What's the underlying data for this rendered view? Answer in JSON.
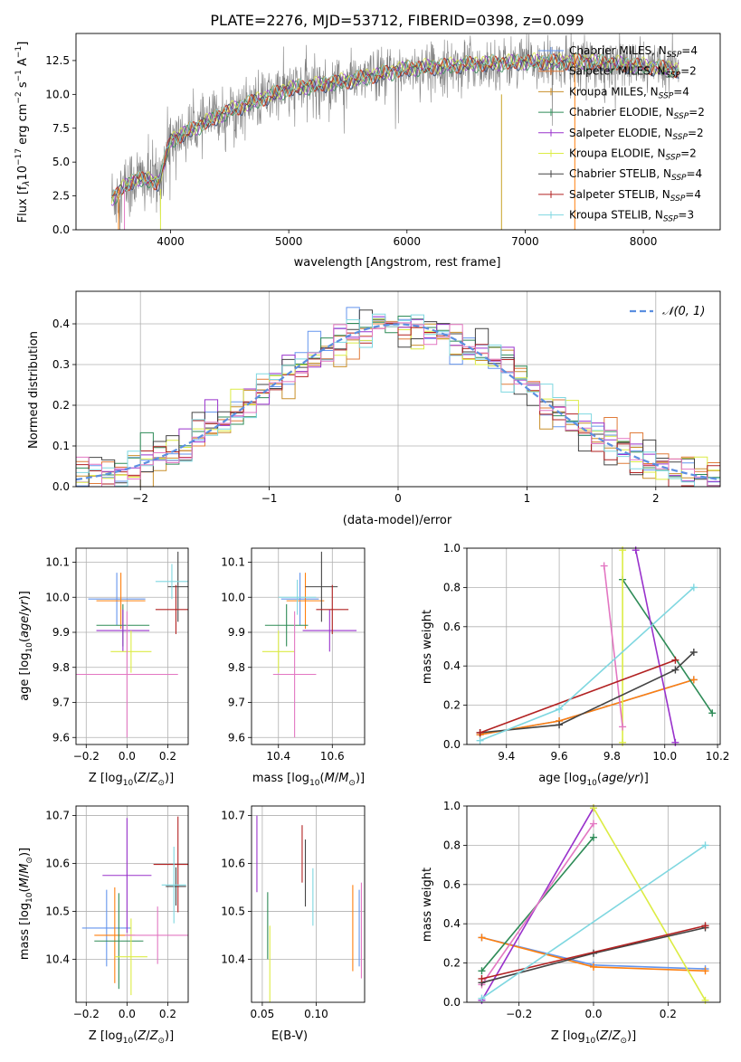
{
  "figure_title": "PLATE=2276, MJD=53712, FIBERID=0398, z=0.099",
  "colors": {
    "spectrum": "#808080",
    "chabrier_miles": "#6495ed",
    "salpeter_miles": "#1f77b4",
    "kroupa_miles": "#ff7f0e",
    "chabrier_elodie": "#2e8b57",
    "salpeter_elodie": "#9932cc",
    "kroupa_elodie": "#dcec44",
    "chabrier_stelib": "#444444",
    "salpeter_stelib": "#b22222",
    "kroupa_stelib": "#7fd7e0",
    "pink": "#e377c2",
    "normal_curve": "#5b8fe0"
  },
  "legend_models": [
    {
      "name": "Chabrier MILES",
      "nssp": "N",
      "sub": "SSP",
      "val": "=4",
      "color": "#6495ed"
    },
    {
      "name": "Salpeter MILES",
      "nssp": "N",
      "sub": "SSP",
      "val": "=2",
      "color": "#e07b39"
    },
    {
      "name": "Kroupa MILES",
      "nssp": "N",
      "sub": "SSP",
      "val": "=4",
      "color": "#c98f2a"
    },
    {
      "name": "Chabrier ELODIE",
      "nssp": "N",
      "sub": "SSP",
      "val": "=2",
      "color": "#2e8b57"
    },
    {
      "name": "Salpeter ELODIE",
      "nssp": "N",
      "sub": "SSP",
      "val": "=2",
      "color": "#9932cc"
    },
    {
      "name": "Kroupa ELODIE",
      "nssp": "N",
      "sub": "SSP",
      "val": "=2",
      "color": "#dcec44"
    },
    {
      "name": "Chabrier STELIB",
      "nssp": "N",
      "sub": "SSP",
      "val": "=4",
      "color": "#444444"
    },
    {
      "name": "Salpeter STELIB",
      "nssp": "N",
      "sub": "SSP",
      "val": "=4",
      "color": "#b22222"
    },
    {
      "name": "Kroupa STELIB",
      "nssp": "N",
      "sub": "SSP",
      "val": "=3",
      "color": "#7fd7e0"
    }
  ],
  "chart_data": [
    {
      "id": "spectrum",
      "type": "line",
      "xlabel": "wavelength [Angstrom, rest frame]",
      "ylabel": "Flux [f",
      "xlim": [
        3200,
        8650
      ],
      "ylim": [
        0,
        14.5
      ],
      "xticks": [
        4000,
        5000,
        6000,
        7000,
        8000
      ],
      "yticks": [
        0.0,
        2.5,
        5.0,
        7.5,
        10.0,
        12.5
      ],
      "x_range": [
        3500,
        8300
      ],
      "trend": [
        [
          3500,
          2.3
        ],
        [
          3700,
          3.8
        ],
        [
          3900,
          3.5
        ],
        [
          4000,
          6.6
        ],
        [
          4500,
          8.8
        ],
        [
          5000,
          10.4
        ],
        [
          5500,
          11.0
        ],
        [
          6000,
          11.9
        ],
        [
          6500,
          12.2
        ],
        [
          7000,
          12.4
        ],
        [
          7500,
          12.4
        ],
        [
          8000,
          12.1
        ],
        [
          8300,
          11.8
        ]
      ],
      "spike_wavelengths": [
        6800,
        7420
      ]
    },
    {
      "id": "residuals",
      "type": "line",
      "xlabel": "(data-model)/error",
      "ylabel": "Normed distribution",
      "xlim": [
        -2.5,
        2.5
      ],
      "ylim": [
        0,
        0.48
      ],
      "xticks": [
        -2,
        -1,
        0,
        1,
        2
      ],
      "yticks": [
        0.0,
        0.1,
        0.2,
        0.3,
        0.4
      ],
      "bin_width": 0.1,
      "legend": "𝒩(0, 1)"
    },
    {
      "id": "age_vs_Z",
      "type": "scatter",
      "xlabel": "Z [log",
      "ylabel": "age  [log",
      "xlim": [
        -0.25,
        0.3
      ],
      "ylim": [
        9.58,
        10.14
      ],
      "xticks": [
        -0.2,
        0.0,
        0.2
      ],
      "yticks": [
        9.6,
        9.7,
        9.8,
        9.9,
        10.0,
        10.1
      ],
      "points": [
        {
          "x": -0.05,
          "y": 9.995,
          "xerr": 0.14,
          "yerr": 0.075,
          "color": "#6495ed"
        },
        {
          "x": -0.03,
          "y": 9.99,
          "xerr": 0.12,
          "yerr": 0.08,
          "color": "#ff7f0e"
        },
        {
          "x": -0.02,
          "y": 9.92,
          "xerr": 0.13,
          "yerr": 0.06,
          "color": "#2e8b57"
        },
        {
          "x": -0.02,
          "y": 9.905,
          "xerr": 0.13,
          "yerr": 0.06,
          "color": "#9932cc"
        },
        {
          "x": 0.02,
          "y": 9.845,
          "xerr": 0.1,
          "yerr": 0.06,
          "color": "#dcec44"
        },
        {
          "x": 0.0,
          "y": 9.78,
          "xerr": 0.25,
          "yerr": 0.18,
          "color": "#e377c2"
        },
        {
          "x": 0.25,
          "y": 10.03,
          "xerr": 0.05,
          "yerr": 0.1,
          "color": "#444444"
        },
        {
          "x": 0.24,
          "y": 9.965,
          "xerr": 0.1,
          "yerr": 0.07,
          "color": "#b22222"
        },
        {
          "x": 0.22,
          "y": 10.045,
          "xerr": 0.08,
          "yerr": 0.05,
          "color": "#7fd7e0"
        }
      ]
    },
    {
      "id": "age_vs_mass",
      "type": "scatter",
      "xlabel": "mass [log",
      "ylabel": "",
      "xlim": [
        10.3,
        10.72
      ],
      "ylim": [
        9.58,
        10.14
      ],
      "xticks": [
        10.4,
        10.6
      ],
      "yticks": [
        9.6,
        9.7,
        9.8,
        9.9,
        10.0,
        10.1
      ],
      "points": [
        {
          "x": 10.48,
          "y": 9.995,
          "xerr": 0.07,
          "yerr": 0.075,
          "color": "#6495ed"
        },
        {
          "x": 10.5,
          "y": 9.99,
          "xerr": 0.07,
          "yerr": 0.08,
          "color": "#ff7f0e"
        },
        {
          "x": 10.43,
          "y": 9.92,
          "xerr": 0.08,
          "yerr": 0.06,
          "color": "#2e8b57"
        },
        {
          "x": 10.59,
          "y": 9.905,
          "xerr": 0.1,
          "yerr": 0.06,
          "color": "#9932cc"
        },
        {
          "x": 10.4,
          "y": 9.845,
          "xerr": 0.06,
          "yerr": 0.06,
          "color": "#dcec44"
        },
        {
          "x": 10.46,
          "y": 9.78,
          "xerr": 0.08,
          "yerr": 0.18,
          "color": "#e377c2"
        },
        {
          "x": 10.56,
          "y": 10.03,
          "xerr": 0.06,
          "yerr": 0.1,
          "color": "#444444"
        },
        {
          "x": 10.6,
          "y": 9.965,
          "xerr": 0.06,
          "yerr": 0.07,
          "color": "#b22222"
        },
        {
          "x": 10.47,
          "y": 10.0,
          "xerr": 0.07,
          "yerr": 0.05,
          "color": "#7fd7e0"
        }
      ]
    },
    {
      "id": "weight_vs_age",
      "type": "line",
      "xlabel": "age  [log",
      "ylabel": "mass weight",
      "xlim": [
        9.25,
        10.21
      ],
      "ylim": [
        0,
        1.0
      ],
      "xticks": [
        9.4,
        9.6,
        9.8,
        10.0,
        10.2
      ],
      "yticks": [
        0.0,
        0.2,
        0.4,
        0.6,
        0.8,
        1.0
      ],
      "series": [
        {
          "color": "#6495ed",
          "x": [
            9.3,
            9.6,
            10.11
          ],
          "y": [
            0.05,
            0.12,
            0.33
          ]
        },
        {
          "color": "#ff7f0e",
          "x": [
            9.3,
            9.6,
            10.11
          ],
          "y": [
            0.05,
            0.12,
            0.33
          ]
        },
        {
          "color": "#2e8b57",
          "x": [
            9.84,
            10.18
          ],
          "y": [
            0.84,
            0.16
          ]
        },
        {
          "color": "#9932cc",
          "x": [
            9.89,
            10.04
          ],
          "y": [
            0.99,
            0.01
          ]
        },
        {
          "color": "#dcec44",
          "x": [
            9.84,
            9.84
          ],
          "y": [
            0.99,
            0.01
          ]
        },
        {
          "color": "#e377c2",
          "x": [
            9.77,
            9.84
          ],
          "y": [
            0.91,
            0.09
          ]
        },
        {
          "color": "#444444",
          "x": [
            9.3,
            9.6,
            10.04,
            10.11
          ],
          "y": [
            0.06,
            0.1,
            0.38,
            0.47
          ]
        },
        {
          "color": "#b22222",
          "x": [
            9.3,
            10.04
          ],
          "y": [
            0.06,
            0.43
          ]
        },
        {
          "color": "#7fd7e0",
          "x": [
            9.3,
            9.6,
            10.11
          ],
          "y": [
            0.02,
            0.18,
            0.8
          ]
        }
      ]
    },
    {
      "id": "mass_vs_Z",
      "type": "scatter",
      "xlabel": "Z [log",
      "ylabel": "mass [log",
      "xlim": [
        -0.25,
        0.3
      ],
      "ylim": [
        10.31,
        10.72
      ],
      "xticks": [
        -0.2,
        0.0,
        0.2
      ],
      "yticks": [
        10.4,
        10.5,
        10.6,
        10.7
      ],
      "points": [
        {
          "x": -0.1,
          "y": 10.465,
          "xerr": 0.12,
          "yerr": 0.08,
          "color": "#6495ed"
        },
        {
          "x": -0.06,
          "y": 10.45,
          "xerr": 0.1,
          "yerr": 0.1,
          "color": "#ff7f0e"
        },
        {
          "x": -0.04,
          "y": 10.438,
          "xerr": 0.12,
          "yerr": 0.1,
          "color": "#2e8b57"
        },
        {
          "x": 0.0,
          "y": 10.575,
          "xerr": 0.12,
          "yerr": 0.12,
          "color": "#9932cc"
        },
        {
          "x": 0.02,
          "y": 10.405,
          "xerr": 0.08,
          "yerr": 0.08,
          "color": "#dcec44"
        },
        {
          "x": 0.15,
          "y": 10.45,
          "xerr": 0.16,
          "yerr": 0.06,
          "color": "#e377c2"
        },
        {
          "x": 0.24,
          "y": 10.552,
          "xerr": 0.05,
          "yerr": 0.04,
          "color": "#444444"
        },
        {
          "x": 0.25,
          "y": 10.598,
          "xerr": 0.12,
          "yerr": 0.1,
          "color": "#b22222"
        },
        {
          "x": 0.23,
          "y": 10.555,
          "xerr": 0.06,
          "yerr": 0.08,
          "color": "#7fd7e0"
        }
      ]
    },
    {
      "id": "mass_vs_ebv",
      "type": "scatter",
      "xlabel": "E(B-V)",
      "ylabel": "",
      "xlim": [
        0.04,
        0.145
      ],
      "ylim": [
        10.31,
        10.72
      ],
      "xticks": [
        0.05,
        0.1
      ],
      "yticks": [
        10.4,
        10.5,
        10.6,
        10.7
      ],
      "points": [
        {
          "x": 0.14,
          "y": 10.465,
          "yerr": 0.08,
          "color": "#6495ed"
        },
        {
          "x": 0.134,
          "y": 10.465,
          "yerr": 0.09,
          "color": "#ff7f0e"
        },
        {
          "x": 0.055,
          "y": 10.47,
          "yerr": 0.07,
          "color": "#2e8b57"
        },
        {
          "x": 0.045,
          "y": 10.62,
          "yerr": 0.08,
          "color": "#9932cc"
        },
        {
          "x": 0.057,
          "y": 10.39,
          "yerr": 0.08,
          "color": "#dcec44"
        },
        {
          "x": 0.142,
          "y": 10.46,
          "yerr": 0.1,
          "color": "#e377c2"
        },
        {
          "x": 0.09,
          "y": 10.58,
          "yerr": 0.07,
          "color": "#444444"
        },
        {
          "x": 0.087,
          "y": 10.62,
          "yerr": 0.06,
          "color": "#b22222"
        },
        {
          "x": 0.097,
          "y": 10.53,
          "yerr": 0.06,
          "color": "#7fd7e0"
        }
      ]
    },
    {
      "id": "weight_vs_Z",
      "type": "line",
      "xlabel": "Z [log",
      "ylabel": "mass weight",
      "xlim": [
        -0.34,
        0.34
      ],
      "ylim": [
        0,
        1.0
      ],
      "xticks": [
        -0.2,
        0.0,
        0.2
      ],
      "yticks": [
        0.0,
        0.2,
        0.4,
        0.6,
        0.8,
        1.0
      ],
      "series": [
        {
          "color": "#6495ed",
          "x": [
            -0.3,
            0.0,
            0.3
          ],
          "y": [
            0.33,
            0.19,
            0.17
          ]
        },
        {
          "color": "#ff7f0e",
          "x": [
            -0.3,
            0.0,
            0.3
          ],
          "y": [
            0.33,
            0.18,
            0.16
          ]
        },
        {
          "color": "#2e8b57",
          "x": [
            -0.3,
            0.0
          ],
          "y": [
            0.16,
            0.84
          ]
        },
        {
          "color": "#9932cc",
          "x": [
            -0.3,
            0.0
          ],
          "y": [
            0.01,
            0.99
          ]
        },
        {
          "color": "#dcec44",
          "x": [
            0.0,
            0.3
          ],
          "y": [
            0.99,
            0.01
          ]
        },
        {
          "color": "#e377c2",
          "x": [
            -0.3,
            0.0
          ],
          "y": [
            0.09,
            0.91
          ]
        },
        {
          "color": "#444444",
          "x": [
            -0.3,
            0.0,
            0.3
          ],
          "y": [
            0.1,
            0.25,
            0.38
          ]
        },
        {
          "color": "#b22222",
          "x": [
            -0.3,
            0.3
          ],
          "y": [
            0.12,
            0.39
          ]
        },
        {
          "color": "#7fd7e0",
          "x": [
            -0.3,
            0.3
          ],
          "y": [
            0.02,
            0.8
          ]
        }
      ]
    }
  ]
}
